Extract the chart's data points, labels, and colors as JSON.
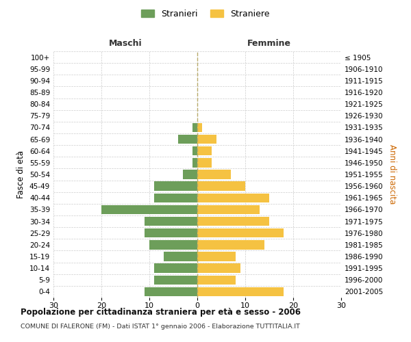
{
  "age_groups": [
    "100+",
    "95-99",
    "90-94",
    "85-89",
    "80-84",
    "75-79",
    "70-74",
    "65-69",
    "60-64",
    "55-59",
    "50-54",
    "45-49",
    "40-44",
    "35-39",
    "30-34",
    "25-29",
    "20-24",
    "15-19",
    "10-14",
    "5-9",
    "0-4"
  ],
  "birth_years": [
    "≤ 1905",
    "1906-1910",
    "1911-1915",
    "1916-1920",
    "1921-1925",
    "1926-1930",
    "1931-1935",
    "1936-1940",
    "1941-1945",
    "1946-1950",
    "1951-1955",
    "1956-1960",
    "1961-1965",
    "1966-1970",
    "1971-1975",
    "1976-1980",
    "1981-1985",
    "1986-1990",
    "1991-1995",
    "1996-2000",
    "2001-2005"
  ],
  "maschi": [
    0,
    0,
    0,
    0,
    0,
    0,
    1,
    4,
    1,
    1,
    3,
    9,
    9,
    20,
    11,
    11,
    10,
    7,
    9,
    9,
    11
  ],
  "femmine": [
    0,
    0,
    0,
    0,
    0,
    0,
    1,
    4,
    3,
    3,
    7,
    10,
    15,
    13,
    15,
    18,
    14,
    8,
    9,
    8,
    18
  ],
  "color_maschi": "#6d9e5a",
  "color_femmine": "#f5c242",
  "color_center_line": "#b8aa6a",
  "xlim": 30,
  "title": "Popolazione per cittadinanza straniera per età e sesso - 2006",
  "subtitle": "COMUNE DI FALERONE (FM) - Dati ISTAT 1° gennaio 2006 - Elaborazione TUTTITALIA.IT",
  "ylabel_left": "Fasce di età",
  "ylabel_right": "Anni di nascita",
  "label_maschi": "Stranieri",
  "label_femmine": "Straniere",
  "header_maschi": "Maschi",
  "header_femmine": "Femmine",
  "background_color": "#ffffff",
  "grid_color": "#cccccc"
}
